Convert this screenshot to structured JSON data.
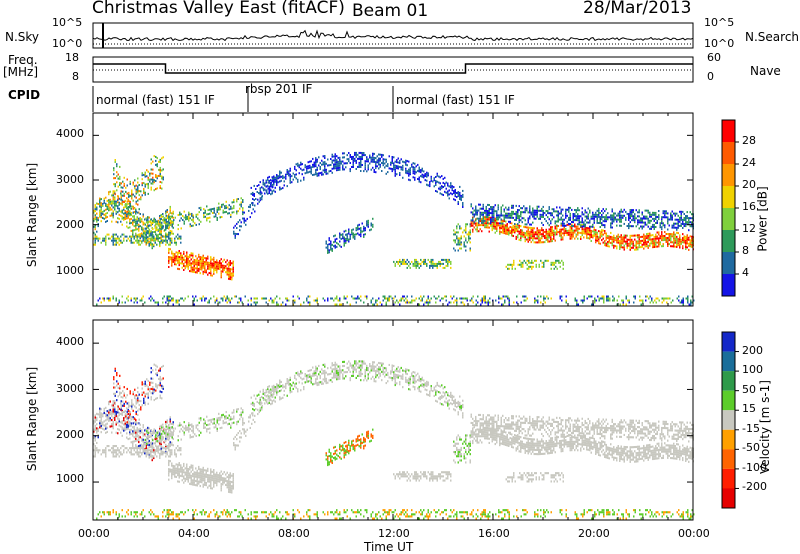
{
  "header": {
    "title": "Christmas Valley East (fitACF)",
    "beam": "Beam 01",
    "date": "28/Mar/2013"
  },
  "left_labels": {
    "nsky": "N.Sky",
    "freq_top": "Freq.",
    "freq_unit": "[MHz]",
    "cpid": "CPID"
  },
  "right_labels": {
    "nsearch": "N.Search",
    "nave": "Nave"
  },
  "noise_axis": {
    "top": "10^5",
    "bottom": "10^0"
  },
  "freq_axis": {
    "left_ticks": [
      "18",
      "8"
    ],
    "right_ticks": [
      "60",
      "0"
    ]
  },
  "cpid_segments": [
    {
      "label": "normal (fast) 151 IF",
      "start_hour": 0,
      "end_hour": 6.2
    },
    {
      "label": "rbsp 201 IF",
      "start_hour": 6.2,
      "end_hour": 12
    },
    {
      "label": "normal (fast) 151 IF",
      "start_hour": 12,
      "end_hour": 24
    }
  ],
  "power_colorbar": {
    "label": "Power [dB]",
    "ticks": [
      "28",
      "24",
      "20",
      "16",
      "12",
      "8",
      "4"
    ],
    "colors": [
      "#ff0000",
      "#ff5a00",
      "#ff9600",
      "#f0d200",
      "#7fcf3c",
      "#2e9a5a",
      "#1f6aa0",
      "#1414e6"
    ]
  },
  "velocity_colorbar": {
    "label": "Velocity [m s-1]",
    "ticks": [
      "200",
      "100",
      "50",
      "15",
      "-15",
      "-50",
      "-100",
      "-200"
    ],
    "colors": [
      "#1428c8",
      "#1a6e9a",
      "#2e9a4a",
      "#5ccc2a",
      "#c8c8c0",
      "#ffa000",
      "#ff6400",
      "#ff1e00",
      "#e60000"
    ]
  },
  "chart_data": [
    {
      "type": "heatmap",
      "ylabel": "Slant Range [km]",
      "y_ticks": [
        1000,
        2000,
        3000,
        4000
      ],
      "x_ticks": [
        "00:00",
        "04:00",
        "08:00",
        "12:00",
        "16:00",
        "20:00",
        "00:00"
      ],
      "xlim": [
        0,
        24
      ],
      "ylim": [
        180,
        4500
      ],
      "quantity": "Power [dB]"
    },
    {
      "type": "heatmap",
      "ylabel": "Slant Range [km]",
      "xlabel": "Time UT",
      "y_ticks": [
        1000,
        2000,
        3000,
        4000
      ],
      "x_ticks": [
        "00:00",
        "04:00",
        "08:00",
        "12:00",
        "16:00",
        "20:00",
        "00:00"
      ],
      "xlim": [
        0,
        24
      ],
      "ylim": [
        180,
        4500
      ],
      "quantity": "Velocity [m s-1]"
    }
  ]
}
